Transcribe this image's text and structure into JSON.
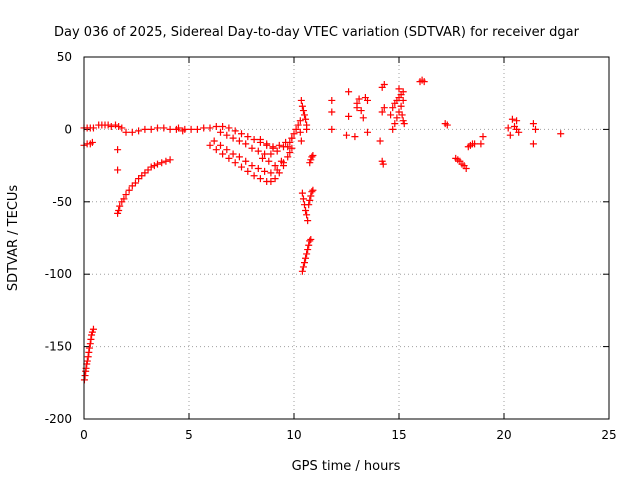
{
  "chart_data": {
    "type": "scatter",
    "title": "Day 036 of 2025, Sidereal Day-to-day VTEC variation (SDTVAR) for receiver dgar",
    "xlabel": "GPS time / hours",
    "ylabel": "SDTVAR / TECUs",
    "xlim": [
      0,
      25
    ],
    "ylim": [
      -200,
      50
    ],
    "xticks": [
      0,
      5,
      10,
      15,
      20,
      25
    ],
    "yticks": [
      -200,
      -150,
      -100,
      -50,
      0,
      50
    ],
    "xtick_labels": [
      "0",
      "5",
      "10",
      "15",
      "20",
      "25"
    ],
    "ytick_labels": [
      "-200",
      "-150",
      "-100",
      "-50",
      "0",
      "50"
    ],
    "grid": true,
    "marker": "+",
    "marker_color": "#ff0000",
    "series": [
      {
        "name": "SDTVAR",
        "points": [
          [
            0.02,
            -173
          ],
          [
            0.05,
            -170
          ],
          [
            0.08,
            -167
          ],
          [
            0.1,
            -165
          ],
          [
            0.13,
            -162
          ],
          [
            0.16,
            -160
          ],
          [
            0.2,
            -157
          ],
          [
            0.23,
            -154
          ],
          [
            0.26,
            -151
          ],
          [
            0.3,
            -148
          ],
          [
            0.33,
            -145
          ],
          [
            0.36,
            -142
          ],
          [
            0.4,
            -140
          ],
          [
            0.45,
            -138
          ],
          [
            0.0,
            1
          ],
          [
            0.15,
            1
          ],
          [
            0.3,
            1
          ],
          [
            0.45,
            1
          ],
          [
            0.0,
            -11
          ],
          [
            0.15,
            -10
          ],
          [
            0.3,
            -10
          ],
          [
            0.4,
            -9
          ],
          [
            0.7,
            3
          ],
          [
            0.85,
            3
          ],
          [
            1.0,
            3
          ],
          [
            1.15,
            3
          ],
          [
            1.3,
            2
          ],
          [
            1.5,
            3
          ],
          [
            1.65,
            2
          ],
          [
            1.8,
            1
          ],
          [
            1.6,
            -28
          ],
          [
            1.6,
            -14
          ],
          [
            1.6,
            -58
          ],
          [
            1.65,
            -56
          ],
          [
            1.7,
            -53
          ],
          [
            1.8,
            -50
          ],
          [
            1.9,
            -48
          ],
          [
            2.0,
            -45
          ],
          [
            2.15,
            -42
          ],
          [
            2.3,
            -39
          ],
          [
            2.45,
            -37
          ],
          [
            2.6,
            -34
          ],
          [
            2.75,
            -32
          ],
          [
            2.9,
            -30
          ],
          [
            3.05,
            -28
          ],
          [
            3.2,
            -26
          ],
          [
            3.35,
            -25
          ],
          [
            3.5,
            -24
          ],
          [
            3.7,
            -23
          ],
          [
            3.9,
            -22
          ],
          [
            4.1,
            -21
          ],
          [
            2.0,
            -2
          ],
          [
            2.3,
            -2
          ],
          [
            2.6,
            -1
          ],
          [
            2.9,
            0
          ],
          [
            3.2,
            0
          ],
          [
            3.5,
            1
          ],
          [
            3.8,
            1
          ],
          [
            4.1,
            0
          ],
          [
            4.4,
            0
          ],
          [
            4.7,
            -1
          ],
          [
            4.5,
            1
          ],
          [
            4.8,
            0
          ],
          [
            5.1,
            0
          ],
          [
            5.4,
            0
          ],
          [
            5.7,
            1
          ],
          [
            6.0,
            1
          ],
          [
            6.3,
            2
          ],
          [
            6.6,
            2
          ],
          [
            6.9,
            1
          ],
          [
            7.2,
            -1
          ],
          [
            7.5,
            -3
          ],
          [
            7.8,
            -5
          ],
          [
            8.1,
            -7
          ],
          [
            8.4,
            -9
          ],
          [
            8.7,
            -11
          ],
          [
            9.0,
            -12
          ],
          [
            9.3,
            -11
          ],
          [
            9.6,
            -9
          ],
          [
            9.9,
            -6
          ],
          [
            6.5,
            -2
          ],
          [
            6.8,
            -4
          ],
          [
            7.1,
            -6
          ],
          [
            7.4,
            -8
          ],
          [
            7.7,
            -10
          ],
          [
            8.0,
            -13
          ],
          [
            8.3,
            -15
          ],
          [
            8.6,
            -17
          ],
          [
            8.9,
            -17
          ],
          [
            9.2,
            -15
          ],
          [
            9.5,
            -12
          ],
          [
            9.8,
            -9
          ],
          [
            6.2,
            -8
          ],
          [
            6.5,
            -11
          ],
          [
            6.8,
            -14
          ],
          [
            7.1,
            -17
          ],
          [
            7.4,
            -19
          ],
          [
            7.7,
            -22
          ],
          [
            8.0,
            -25
          ],
          [
            8.3,
            -27
          ],
          [
            8.6,
            -29
          ],
          [
            8.9,
            -30
          ],
          [
            9.2,
            -28
          ],
          [
            9.5,
            -23
          ],
          [
            9.8,
            -16
          ],
          [
            6.0,
            -11
          ],
          [
            6.3,
            -14
          ],
          [
            6.6,
            -17
          ],
          [
            6.9,
            -20
          ],
          [
            7.2,
            -23
          ],
          [
            7.5,
            -26
          ],
          [
            7.8,
            -29
          ],
          [
            8.1,
            -32
          ],
          [
            8.4,
            -34
          ],
          [
            8.7,
            -36
          ],
          [
            8.9,
            -36
          ],
          [
            9.1,
            -34
          ],
          [
            9.3,
            -30
          ],
          [
            9.5,
            -25
          ],
          [
            9.7,
            -19
          ],
          [
            9.9,
            -13
          ],
          [
            8.4,
            -7
          ],
          [
            8.7,
            -10
          ],
          [
            9.0,
            -13
          ],
          [
            8.5,
            -20
          ],
          [
            8.8,
            -22
          ],
          [
            9.1,
            -25
          ],
          [
            9.4,
            -22
          ],
          [
            9.7,
            -12
          ],
          [
            9.9,
            -6
          ],
          [
            10.0,
            -3
          ],
          [
            10.1,
            0
          ],
          [
            10.2,
            3
          ],
          [
            10.3,
            6
          ],
          [
            10.3,
            -2
          ],
          [
            10.35,
            -8
          ],
          [
            10.35,
            20
          ],
          [
            10.4,
            16
          ],
          [
            10.45,
            13
          ],
          [
            10.5,
            10
          ],
          [
            10.55,
            7
          ],
          [
            10.6,
            3
          ],
          [
            10.6,
            0
          ],
          [
            10.4,
            -44
          ],
          [
            10.45,
            -48
          ],
          [
            10.5,
            -52
          ],
          [
            10.55,
            -56
          ],
          [
            10.6,
            -59
          ],
          [
            10.65,
            -63
          ],
          [
            10.4,
            -98
          ],
          [
            10.45,
            -95
          ],
          [
            10.5,
            -92
          ],
          [
            10.55,
            -89
          ],
          [
            10.6,
            -86
          ],
          [
            10.65,
            -83
          ],
          [
            10.7,
            -80
          ],
          [
            10.75,
            -77
          ],
          [
            10.8,
            -76
          ],
          [
            10.7,
            -52
          ],
          [
            10.75,
            -49
          ],
          [
            10.8,
            -46
          ],
          [
            10.85,
            -43
          ],
          [
            10.9,
            -42
          ],
          [
            10.75,
            -23
          ],
          [
            10.8,
            -21
          ],
          [
            10.85,
            -19
          ],
          [
            10.9,
            -18
          ],
          [
            11.8,
            20
          ],
          [
            11.8,
            12
          ],
          [
            11.8,
            0
          ],
          [
            12.5,
            -4
          ],
          [
            12.6,
            9
          ],
          [
            12.6,
            26
          ],
          [
            12.9,
            -5
          ],
          [
            13.0,
            15
          ],
          [
            13.0,
            18
          ],
          [
            13.1,
            21
          ],
          [
            13.2,
            13
          ],
          [
            13.3,
            8
          ],
          [
            13.4,
            22
          ],
          [
            13.5,
            20
          ],
          [
            13.5,
            -2
          ],
          [
            14.1,
            -8
          ],
          [
            14.2,
            -22
          ],
          [
            14.25,
            -24
          ],
          [
            14.2,
            12
          ],
          [
            14.3,
            15
          ],
          [
            14.2,
            29
          ],
          [
            14.3,
            31
          ],
          [
            14.6,
            10
          ],
          [
            14.7,
            15
          ],
          [
            14.8,
            18
          ],
          [
            14.9,
            20
          ],
          [
            15.0,
            22
          ],
          [
            15.1,
            24
          ],
          [
            15.2,
            20
          ],
          [
            15.1,
            16
          ],
          [
            15.0,
            12
          ],
          [
            14.9,
            8
          ],
          [
            14.8,
            4
          ],
          [
            14.7,
            0
          ],
          [
            15.15,
            10
          ],
          [
            15.2,
            6
          ],
          [
            15.25,
            4
          ],
          [
            15.2,
            26
          ],
          [
            15.0,
            28
          ],
          [
            16.0,
            33
          ],
          [
            16.1,
            34
          ],
          [
            16.2,
            33
          ],
          [
            17.2,
            4
          ],
          [
            17.3,
            3
          ],
          [
            17.7,
            -20
          ],
          [
            17.8,
            -21
          ],
          [
            17.9,
            -22
          ],
          [
            18.0,
            -24
          ],
          [
            18.1,
            -25
          ],
          [
            18.2,
            -27
          ],
          [
            18.3,
            -12
          ],
          [
            18.4,
            -11
          ],
          [
            18.5,
            -10
          ],
          [
            18.6,
            -10
          ],
          [
            18.9,
            -10
          ],
          [
            19.0,
            -5
          ],
          [
            20.2,
            1
          ],
          [
            20.3,
            -4
          ],
          [
            20.4,
            7
          ],
          [
            20.5,
            2
          ],
          [
            20.6,
            6
          ],
          [
            20.6,
            0
          ],
          [
            20.7,
            -2
          ],
          [
            21.4,
            4
          ],
          [
            21.4,
            -10
          ],
          [
            21.5,
            0
          ],
          [
            22.7,
            -3
          ]
        ]
      }
    ]
  }
}
